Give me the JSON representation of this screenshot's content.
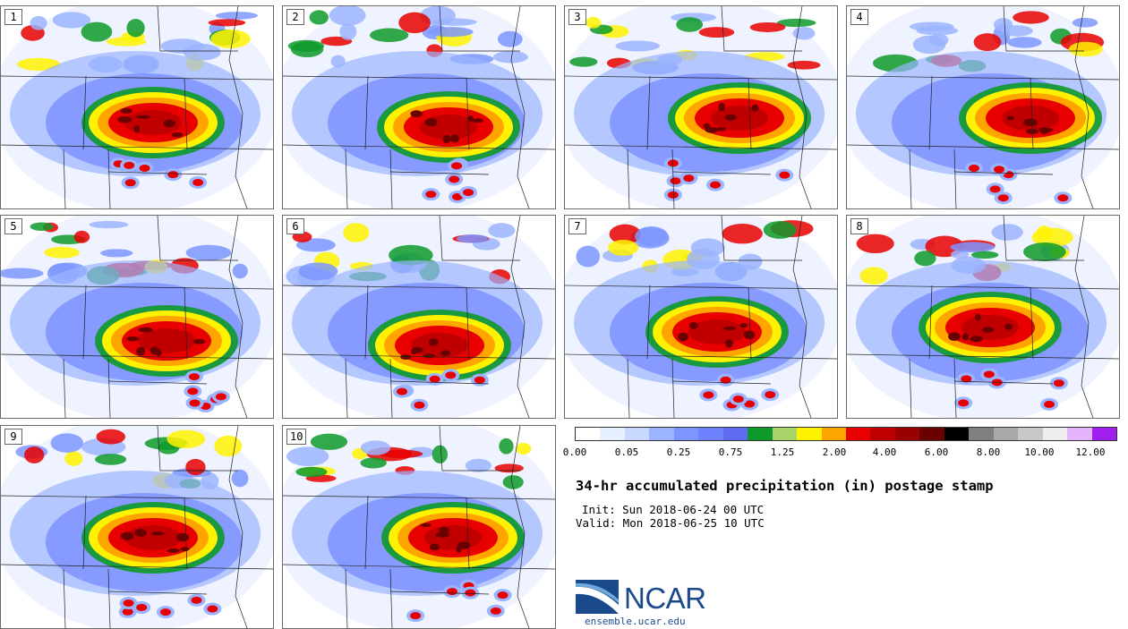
{
  "panels": [
    {
      "label": "1"
    },
    {
      "label": "2"
    },
    {
      "label": "3"
    },
    {
      "label": "4"
    },
    {
      "label": "5"
    },
    {
      "label": "6"
    },
    {
      "label": "7"
    },
    {
      "label": "8"
    },
    {
      "label": "9"
    },
    {
      "label": "10"
    }
  ],
  "colorbar": {
    "colors": [
      "#ffffff",
      "#e6f0ff",
      "#c8d8ff",
      "#9bb4ff",
      "#7d96ff",
      "#6e82ff",
      "#5f6cf2",
      "#0e9a2a",
      "#a9d46a",
      "#fff200",
      "#ffa500",
      "#e80000",
      "#c00000",
      "#9a0000",
      "#6a0000",
      "#000000",
      "#808080",
      "#a8a8a8",
      "#c8c8c8",
      "#eeeeee",
      "#e4b4ff",
      "#a020f0"
    ],
    "tick_labels": [
      "0.00",
      "0.05",
      "0.25",
      "0.75",
      "1.25",
      "2.00",
      "4.00",
      "6.00",
      "8.00",
      "10.00",
      "12.00"
    ]
  },
  "title": "34-hr accumulated precipitation (in) postage stamp",
  "init": "Init: Sun 2018-06-24 00 UTC",
  "valid": "Valid: Mon 2018-06-25 10 UTC",
  "logo": {
    "text": "NCAR",
    "url": "ensemble.ucar.edu",
    "color": "#1a4a8c"
  }
}
